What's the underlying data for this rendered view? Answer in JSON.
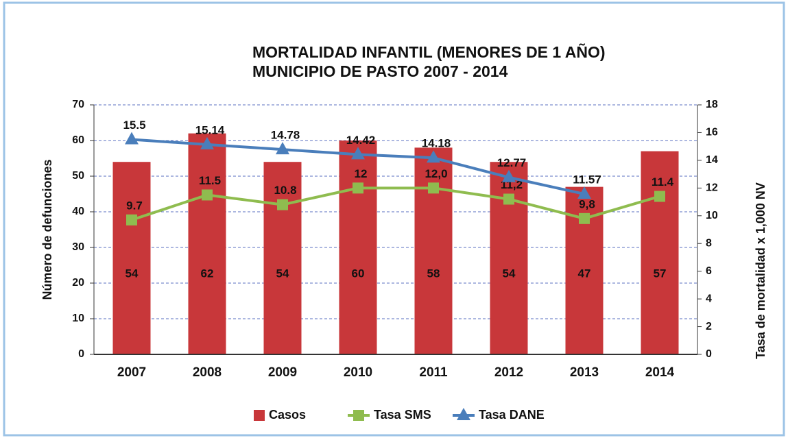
{
  "chart_data": {
    "type": "bar",
    "title": [
      "MORTALIDAD INFANTIL (MENORES DE 1 AÑO)",
      "MUNICIPIO DE PASTO 2007 -  2014"
    ],
    "categories": [
      "2007",
      "2008",
      "2009",
      "2010",
      "2011",
      "2012",
      "2013",
      "2014"
    ],
    "y_label": "Número de defunciones",
    "y2_label": "Tasa de mortalidad x 1,000 NV",
    "ylim": [
      0,
      70
    ],
    "yticks": [
      0,
      10,
      20,
      30,
      40,
      50,
      60,
      70
    ],
    "y2lim": [
      0,
      18
    ],
    "y2ticks": [
      0,
      2,
      4,
      6,
      8,
      10,
      12,
      14,
      16,
      18
    ],
    "grid": true,
    "legend": "bottom",
    "series": [
      {
        "name": "Casos",
        "type": "bar",
        "color": "#c8373a",
        "values": [
          54,
          62,
          54,
          60,
          58,
          54,
          47,
          57
        ]
      },
      {
        "name": "Tasa SMS",
        "type": "line",
        "axis": "y2",
        "color": "#8fbc4f",
        "marker": "square",
        "values": [
          9.7,
          11.5,
          10.8,
          12,
          12.0,
          11.2,
          9.8,
          11.4
        ],
        "value_labels": [
          "9.7",
          "11.5",
          "10.8",
          "12",
          "12,0",
          "11,2",
          "9,8",
          "11.4"
        ]
      },
      {
        "name": "Tasa DANE",
        "type": "line",
        "axis": "y2",
        "color": "#4a7ebb",
        "marker": "triangle",
        "values": [
          15.5,
          15.14,
          14.78,
          14.42,
          14.18,
          12.77,
          11.57,
          null
        ]
      }
    ]
  }
}
